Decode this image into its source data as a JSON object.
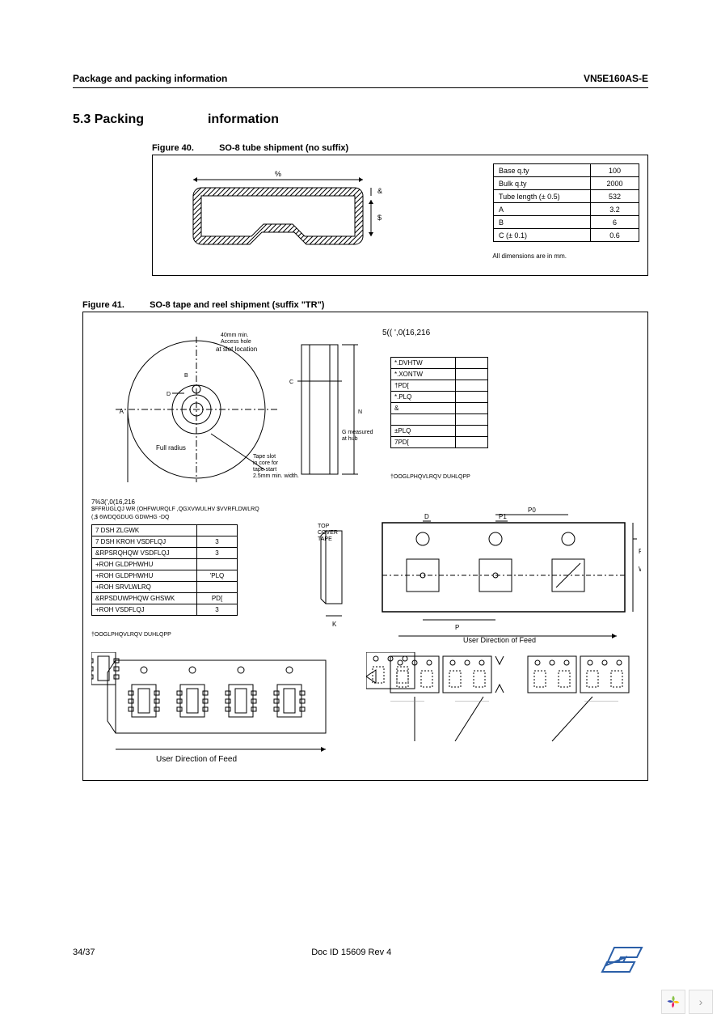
{
  "header": {
    "left": "Package and packing information",
    "right": "VN5E160AS-E"
  },
  "section": {
    "num": "5.3",
    "titleA": "Packing",
    "titleB": "information"
  },
  "fig40": {
    "caption_num": "Figure 40.",
    "caption_text": "SO-8 tube shipment (no suffix)",
    "table": [
      [
        "Base q.ty",
        "100"
      ],
      [
        "Bulk q.ty",
        "2000"
      ],
      [
        "Tube length (± 0.5)",
        "532"
      ],
      [
        "A",
        "3.2"
      ],
      [
        "B",
        "6"
      ],
      [
        "C (± 0.1)",
        "0.6"
      ]
    ],
    "note": "All dimensions are in mm.",
    "dim_labels": {
      "top": "%",
      "right1": "&",
      "right2": "$"
    }
  },
  "fig41": {
    "caption_num": "Figure 41.",
    "caption_text": "SO-8 tape and reel shipment (suffix \"TR\")",
    "reel_title": "5(( ',0(16,216",
    "reel_labels": [
      "40mm min.",
      "Access hole",
      "at slot location",
      "Full radius",
      "Tape slot",
      "in core for",
      "tape start",
      "2.5mm min. width.",
      "G measured",
      "at hub"
    ],
    "reel_table": [
      [
        "*.DVHTW",
        ""
      ],
      [
        "*.XONTW",
        ""
      ],
      [
        "†PD[",
        ""
      ],
      [
        "*.PLQ",
        ""
      ],
      [
        "&",
        ""
      ],
      [
        "",
        ""
      ],
      [
        "±PLQ",
        ""
      ],
      [
        "7PD[",
        ""
      ]
    ],
    "reel_note": "†OOGLPHQVLRQV DUHLQPP",
    "tape_title": "7%3(',0(16,216",
    "tape_sub1": "$FFRUGLQJ WR (OHFWURQLF ,QGXVWULHV $VVRFLDWLRQ",
    "tape_sub2": "(,$ 6WDQGDUG GDWHG -DQ",
    "tape_table": [
      [
        "7 DSH ZLGWK",
        ""
      ],
      [
        "7 DSH KROH VSDFLQJ",
        "3"
      ],
      [
        "&RPSRQHQW VSDFLQJ",
        "3"
      ],
      [
        "+ROH GLDPHWHU",
        ""
      ],
      [
        "+ROH GLDPHWHU",
        "'PLQ"
      ],
      [
        "+ROH SRVLWLRQ",
        ""
      ],
      [
        "&RPSDUWPHQW GHSWK",
        "PD["
      ],
      [
        "+ROH VSDFLQJ",
        "3"
      ]
    ],
    "tape_note": "†OOGLPHQVLRQV DUHLQPP",
    "tape_labels": {
      "cover": "TOP\nCOVER\nTAPE",
      "k": "K",
      "p0": "P0",
      "d": "D",
      "p1": "P1",
      "f": "F",
      "w": "W",
      "p": "P",
      "feed": "User Direction of Feed"
    },
    "feed_label": "User Direction of Feed"
  },
  "footer": {
    "page": "34/37",
    "doc": "Doc ID 15609 Rev 4"
  },
  "colors": {
    "text": "#000000",
    "hatch": "#000000",
    "border": "#000000"
  }
}
